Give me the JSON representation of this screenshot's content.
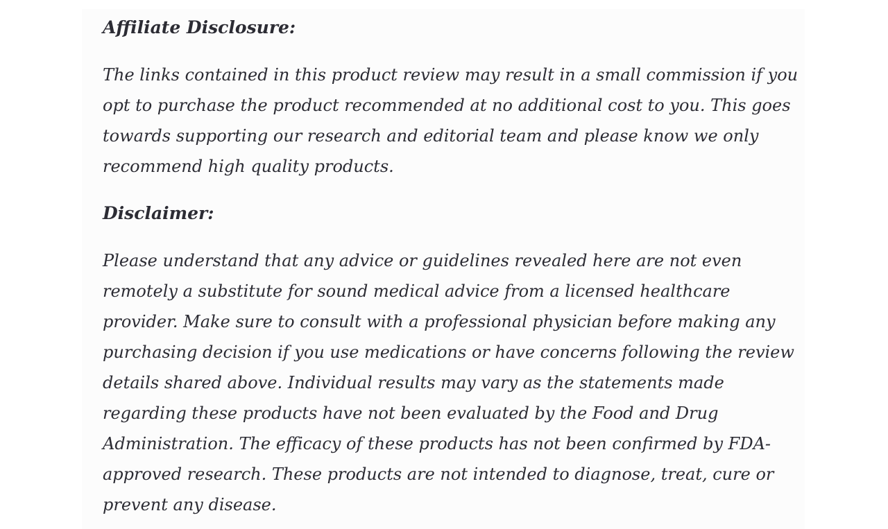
{
  "page": {
    "background_color": "#ffffff",
    "column_background_color": "#fcfcfc",
    "text_color": "#2c2c34"
  },
  "article": {
    "affiliate": {
      "heading": "Affiliate Disclosure:",
      "body": "The links contained in this product review may result in a small commission if you opt to purchase the product recommended at no additional cost to you. This goes towards supporting our research and editorial team and please know we only recommend high quality products."
    },
    "disclaimer": {
      "heading": "Disclaimer:",
      "body": "Please understand that any advice or guidelines revealed here are not even remotely a substitute for sound medical advice from a licensed healthcare provider. Make sure to consult with a professional physician before making any purchasing decision if you use medications or have concerns following the review details shared above. Individual results may vary as the statements made regarding these products have not been evaluated by the Food and Drug Administration. The efficacy of these products has not been confirmed by FDA-approved research. These products are not intended to diagnose, treat, cure or prevent any disease."
    }
  }
}
